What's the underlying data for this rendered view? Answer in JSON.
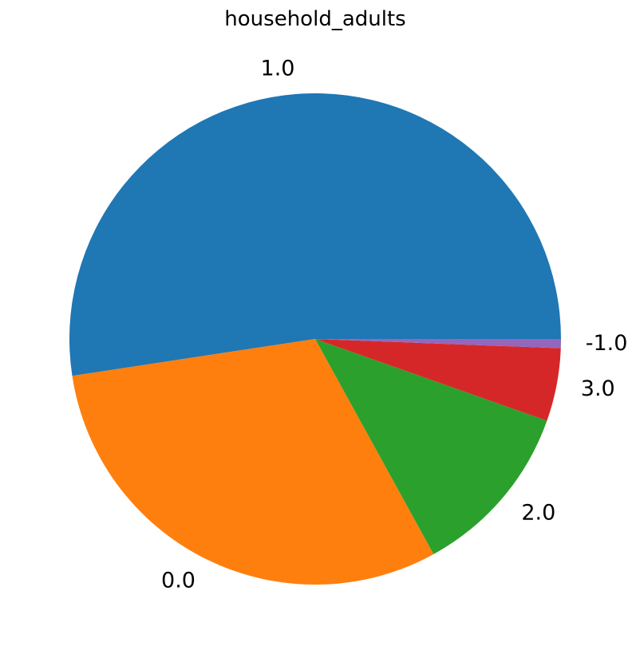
{
  "chart_data": {
    "type": "pie",
    "title": "household_adults",
    "categories": [
      "1.0",
      "0.0",
      "2.0",
      "3.0",
      "-1.0"
    ],
    "values": [
      52.4,
      30.6,
      11.6,
      4.8,
      0.6
    ],
    "colors": [
      "#1f77b4",
      "#ff7f0e",
      "#2ca02c",
      "#d62728",
      "#9467bd"
    ],
    "start_angle_deg": 0,
    "direction": "counterclockwise",
    "legend": "none"
  }
}
